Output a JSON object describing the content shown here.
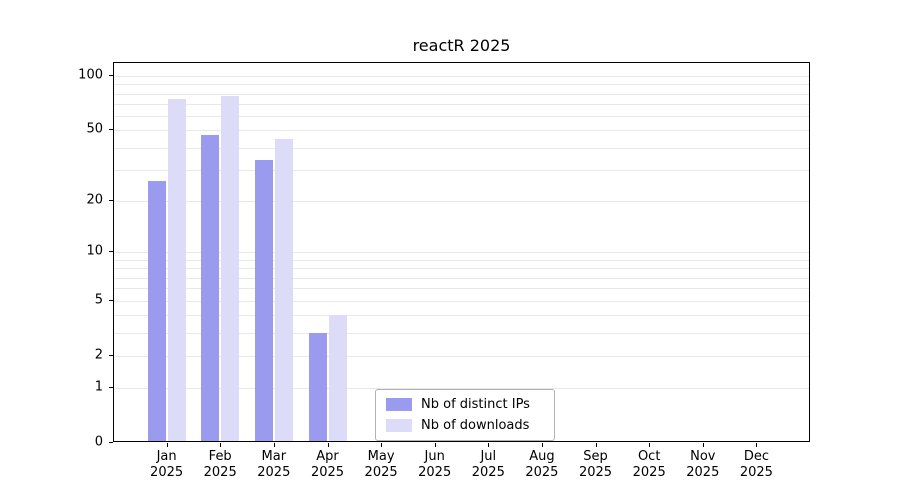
{
  "title": "reactR 2025",
  "chart_data": {
    "type": "bar",
    "title": "reactR 2025",
    "categories": [
      "Jan",
      "Feb",
      "Mar",
      "Apr",
      "May",
      "Jun",
      "Jul",
      "Aug",
      "Sep",
      "Oct",
      "Nov",
      "Dec"
    ],
    "x_tick_year": "2025",
    "series": [
      {
        "name": "Nb of distinct IPs",
        "color": "#9a9aef",
        "values": [
          26,
          47,
          34,
          3,
          0,
          0,
          0,
          0,
          0,
          0,
          0,
          0
        ]
      },
      {
        "name": "Nb of downloads",
        "color": "#dcdcf9",
        "values": [
          75,
          78,
          45,
          4,
          0,
          0,
          0,
          0,
          0,
          0,
          0,
          0
        ]
      }
    ],
    "xlabel": "",
    "ylabel": "",
    "scale": "log10(1+x)",
    "ylim": [
      0,
      118
    ],
    "yticks": [
      0,
      1,
      2,
      5,
      10,
      20,
      50,
      100
    ],
    "grid_values": [
      1,
      2,
      3,
      4,
      5,
      6,
      7,
      8,
      9,
      10,
      20,
      30,
      40,
      50,
      60,
      70,
      80,
      90,
      100
    ],
    "grid": true,
    "legend_position": "bottom-center"
  }
}
